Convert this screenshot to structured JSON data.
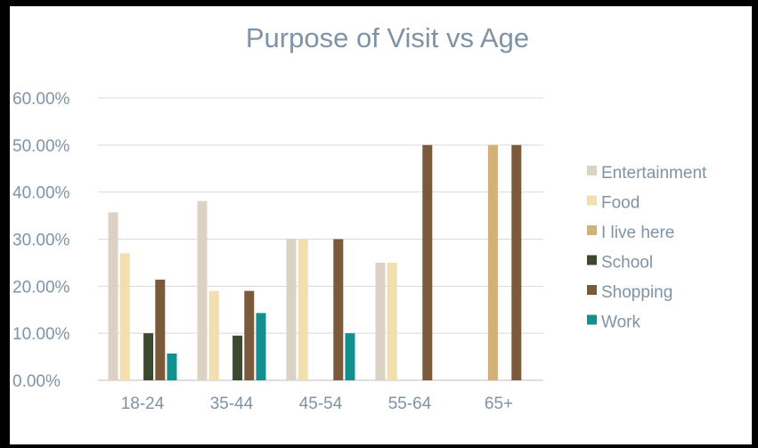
{
  "chart_data": {
    "type": "bar",
    "title": "Purpose of Visit vs Age",
    "xlabel": "",
    "ylabel": "",
    "categories": [
      "18-24",
      "35-44",
      "45-54",
      "55-64",
      "65+"
    ],
    "ylim": [
      0,
      60
    ],
    "yticks": [
      0,
      10,
      20,
      30,
      40,
      50,
      60
    ],
    "ytick_labels": [
      "0.00%",
      "10.00%",
      "20.00%",
      "30.00%",
      "40.00%",
      "50.00%",
      "60.00%"
    ],
    "grid": true,
    "legend_position": "right",
    "series": [
      {
        "name": "Entertainment",
        "color": "#dcd2c3",
        "values": [
          35.7,
          38.1,
          30.0,
          25.0,
          0
        ]
      },
      {
        "name": "Food",
        "color": "#f3dfae",
        "values": [
          27.0,
          19.0,
          30.0,
          25.0,
          0
        ]
      },
      {
        "name": "I live here",
        "color": "#d3b078",
        "values": [
          0,
          0,
          0,
          0,
          50.0
        ]
      },
      {
        "name": "School",
        "color": "#3b4a2f",
        "values": [
          10.0,
          9.5,
          0,
          0,
          0
        ]
      },
      {
        "name": "Shopping",
        "color": "#7b5a3c",
        "values": [
          21.4,
          19.0,
          30.0,
          50.0,
          50.0
        ]
      },
      {
        "name": "Work",
        "color": "#12908f",
        "values": [
          5.7,
          14.3,
          10.0,
          0,
          0
        ]
      }
    ]
  }
}
